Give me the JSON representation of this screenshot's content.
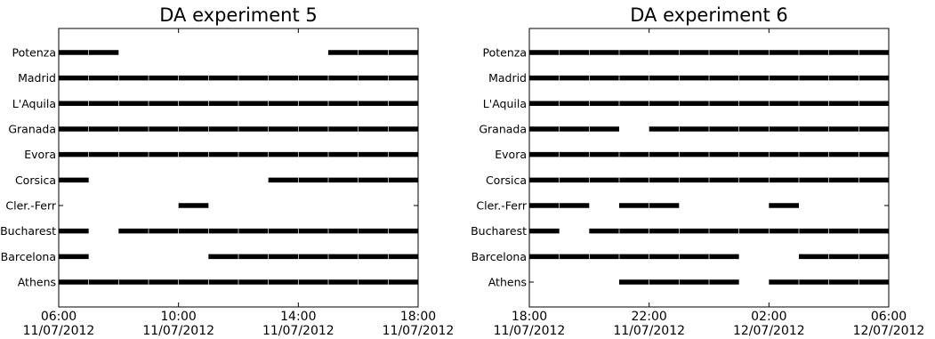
{
  "chart_data": [
    {
      "type": "timeline",
      "title": "DA experiment 5",
      "stations": [
        "Athens",
        "Barcelona",
        "Bucharest",
        "Cler.-Ferr",
        "Corsica",
        "Evora",
        "Granada",
        "L'Aquila",
        "Madrid",
        "Potenza"
      ],
      "x_ticks": [
        {
          "hour": 0,
          "time": "06:00",
          "date": "11/07/2012"
        },
        {
          "hour": 4,
          "time": "10:00",
          "date": "11/07/2012"
        },
        {
          "hour": 8,
          "time": "14:00",
          "date": "11/07/2012"
        },
        {
          "hour": 12,
          "time": "18:00",
          "date": "11/07/2012"
        }
      ],
      "xlim_hours": [
        0,
        12
      ],
      "segments": {
        "Athens": [
          [
            0,
            12
          ]
        ],
        "Barcelona": [
          [
            0,
            1
          ],
          [
            5,
            12
          ]
        ],
        "Bucharest": [
          [
            0,
            1
          ],
          [
            2,
            12
          ]
        ],
        "Cler.-Ferr": [
          [
            4,
            5
          ]
        ],
        "Corsica": [
          [
            0,
            1
          ],
          [
            7,
            12
          ]
        ],
        "Evora": [
          [
            0,
            12
          ]
        ],
        "Granada": [
          [
            0,
            12
          ]
        ],
        "L'Aquila": [
          [
            0,
            12
          ]
        ],
        "Madrid": [
          [
            0,
            12
          ]
        ],
        "Potenza": [
          [
            0,
            2
          ],
          [
            9,
            12
          ]
        ]
      }
    },
    {
      "type": "timeline",
      "title": "DA experiment 6",
      "stations": [
        "Athens",
        "Barcelona",
        "Bucharest",
        "Cler.-Ferr",
        "Corsica",
        "Evora",
        "Granada",
        "L'Aquila",
        "Madrid",
        "Potenza"
      ],
      "x_ticks": [
        {
          "hour": 0,
          "time": "18:00",
          "date": "11/07/2012"
        },
        {
          "hour": 4,
          "time": "22:00",
          "date": "11/07/2012"
        },
        {
          "hour": 8,
          "time": "02:00",
          "date": "12/07/2012"
        },
        {
          "hour": 12,
          "time": "06:00",
          "date": "12/07/2012"
        }
      ],
      "xlim_hours": [
        0,
        12
      ],
      "segments": {
        "Athens": [
          [
            3,
            7
          ],
          [
            8,
            12
          ]
        ],
        "Barcelona": [
          [
            0,
            7
          ],
          [
            9,
            12
          ]
        ],
        "Bucharest": [
          [
            0,
            1
          ],
          [
            2,
            12
          ]
        ],
        "Cler.-Ferr": [
          [
            0,
            2
          ],
          [
            3,
            5
          ],
          [
            8,
            9
          ]
        ],
        "Corsica": [
          [
            0,
            12
          ]
        ],
        "Evora": [
          [
            0,
            12
          ]
        ],
        "Granada": [
          [
            0,
            3
          ],
          [
            4,
            12
          ]
        ],
        "L'Aquila": [
          [
            0,
            12
          ]
        ],
        "Madrid": [
          [
            0,
            12
          ]
        ],
        "Potenza": [
          [
            0,
            12
          ]
        ]
      }
    }
  ]
}
